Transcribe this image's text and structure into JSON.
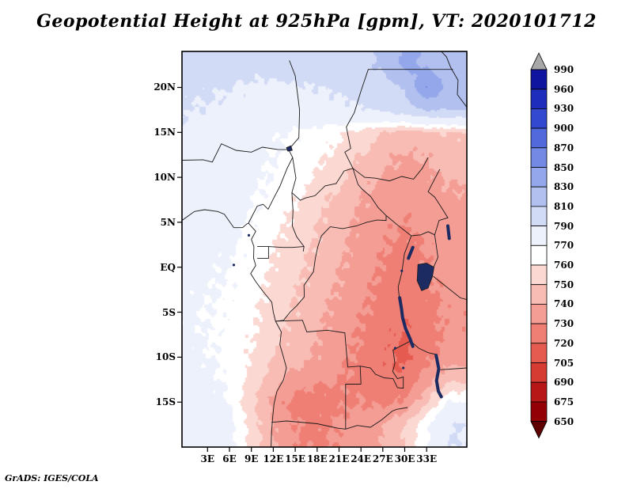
{
  "title": "Geopotential Height at 925hPa [gpm], VT: 2020101712",
  "credit": "GrADS: IGES/COLA",
  "axes": {
    "lat_labels": [
      {
        "label": "20N",
        "deg": 20
      },
      {
        "label": "15N",
        "deg": 15
      },
      {
        "label": "10N",
        "deg": 10
      },
      {
        "label": "5N",
        "deg": 5
      },
      {
        "label": "EQ",
        "deg": 0
      },
      {
        "label": "5S",
        "deg": -5
      },
      {
        "label": "10S",
        "deg": -10
      },
      {
        "label": "15S",
        "deg": -15
      }
    ],
    "lon_labels": [
      {
        "label": "3E",
        "deg": 3
      },
      {
        "label": "6E",
        "deg": 6
      },
      {
        "label": "9E",
        "deg": 9
      },
      {
        "label": "12E",
        "deg": 12
      },
      {
        "label": "15E",
        "deg": 15
      },
      {
        "label": "18E",
        "deg": 18
      },
      {
        "label": "21E",
        "deg": 21
      },
      {
        "label": "24E",
        "deg": 24
      },
      {
        "label": "27E",
        "deg": 27
      },
      {
        "label": "30E",
        "deg": 30
      },
      {
        "label": "33E",
        "deg": 33
      }
    ]
  },
  "colorbar": {
    "tick_labels": [
      "990",
      "960",
      "930",
      "900",
      "870",
      "850",
      "830",
      "810",
      "790",
      "770",
      "760",
      "750",
      "740",
      "730",
      "720",
      "705",
      "690",
      "675",
      "650"
    ],
    "colors_low_to_high": [
      "#5f0000",
      "#930006",
      "#b81717",
      "#d63c31",
      "#e65b50",
      "#ef7e74",
      "#f49d94",
      "#f8bcb4",
      "#fbd8d2",
      "#ffffff",
      "#edf1fb",
      "#d2dbf6",
      "#b2c0f0",
      "#93a7ea",
      "#7389e3",
      "#5169da",
      "#3349cf",
      "#1e2dbb",
      "#0f159f",
      "#a8a8a8"
    ]
  },
  "chart_data": {
    "type": "heatmap",
    "title": "Geopotential Height at 925hPa [gpm], VT: 2020101712",
    "variable": "Geopotential Height",
    "level": "925hPa",
    "units": "gpm",
    "valid_time": "2020101712",
    "source": "GrADS: IGES/COLA",
    "lon_range": [
      -0.5,
      38.5
    ],
    "lat_range": [
      -20,
      24
    ],
    "legend_position": "right",
    "colorbar_levels": [
      650,
      675,
      690,
      705,
      720,
      730,
      740,
      750,
      760,
      770,
      790,
      810,
      830,
      850,
      870,
      900,
      930,
      960,
      990
    ],
    "grid": {
      "lons": [
        0,
        3,
        6,
        9,
        12,
        15,
        18,
        21,
        24,
        27,
        30,
        33,
        36
      ],
      "lats": [
        22.5,
        20,
        17.5,
        15,
        12.5,
        10,
        7.5,
        5,
        2.5,
        0,
        -2.5,
        -5,
        -7.5,
        -10,
        -12.5,
        -15,
        -17.5
      ],
      "values": [
        [
          798,
          797,
          796,
          795,
          796,
          798,
          800,
          803,
          806,
          812,
          835,
          828,
          818
        ],
        [
          793,
          792,
          790,
          788,
          787,
          788,
          790,
          793,
          797,
          803,
          812,
          852,
          822
        ],
        [
          790,
          789,
          787,
          785,
          783,
          783,
          784,
          786,
          789,
          793,
          800,
          812,
          810
        ],
        [
          788,
          785,
          781,
          776,
          772,
          769,
          766,
          762,
          756,
          750,
          746,
          747,
          750
        ],
        [
          786,
          783,
          779,
          774,
          770,
          767,
          763,
          757,
          750,
          743,
          739,
          741,
          744
        ],
        [
          784,
          781,
          777,
          772,
          769,
          765,
          759,
          752,
          745,
          739,
          736,
          738,
          741
        ],
        [
          781,
          779,
          776,
          771,
          767,
          761,
          754,
          747,
          740,
          735,
          733,
          735,
          738
        ],
        [
          779,
          777,
          774,
          769,
          764,
          757,
          751,
          744,
          738,
          733,
          730,
          733,
          736
        ],
        [
          776,
          774,
          772,
          767,
          761,
          755,
          749,
          743,
          736,
          731,
          727,
          731,
          735
        ],
        [
          774,
          772,
          770,
          766,
          759,
          753,
          747,
          741,
          735,
          729,
          725,
          730,
          734
        ],
        [
          773,
          771,
          769,
          765,
          757,
          751,
          745,
          739,
          733,
          727,
          722,
          728,
          733
        ],
        [
          772,
          770,
          768,
          763,
          755,
          749,
          743,
          737,
          731,
          726,
          721,
          727,
          732
        ],
        [
          772,
          770,
          767,
          761,
          753,
          747,
          741,
          735,
          729,
          724,
          719,
          726,
          732
        ],
        [
          773,
          771,
          767,
          759,
          750,
          744,
          739,
          733,
          728,
          722,
          717,
          727,
          735
        ],
        [
          775,
          772,
          768,
          756,
          744,
          735,
          732,
          730,
          727,
          722,
          723,
          735,
          748
        ],
        [
          778,
          775,
          770,
          752,
          736,
          726,
          725,
          728,
          730,
          727,
          731,
          748,
          770
        ],
        [
          783,
          780,
          774,
          756,
          740,
          730,
          728,
          731,
          735,
          740,
          750,
          768,
          790
        ]
      ]
    }
  }
}
